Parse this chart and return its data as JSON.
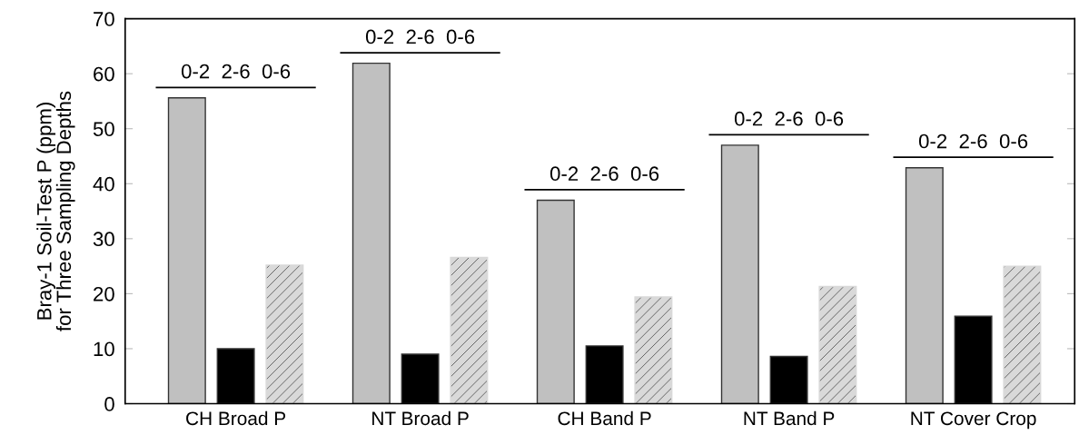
{
  "chart_data": {
    "type": "bar",
    "ylabel": "Bray-1 Soil-Test P (ppm)\nfor Three Sampling Depths",
    "categories": [
      "CH Broad P",
      "NT Broad P",
      "CH Band P",
      "NT Band P",
      "NT Cover Crop"
    ],
    "series": [
      {
        "color": "#c0c0c0",
        "values": [
          55.6,
          61.9,
          37.0,
          47.0,
          42.9
        ]
      },
      {
        "color": "#000000",
        "values": [
          10.0,
          9.0,
          10.5,
          8.6,
          15.9
        ]
      },
      {
        "color": "#d9d9d9",
        "values": [
          25.2,
          26.6,
          19.4,
          21.3,
          25.0
        ]
      }
    ],
    "ylim": [
      0,
      70
    ],
    "yticks": [
      0,
      10,
      20,
      30,
      40,
      50,
      60,
      70
    ],
    "grid": false,
    "annotations": [
      "0-2  2-6  0-6",
      "0-2  2-6  0-6",
      "0-2  2-6  0-6",
      "0-2  2-6  0-6",
      "0-2  2-6  0-6"
    ]
  }
}
